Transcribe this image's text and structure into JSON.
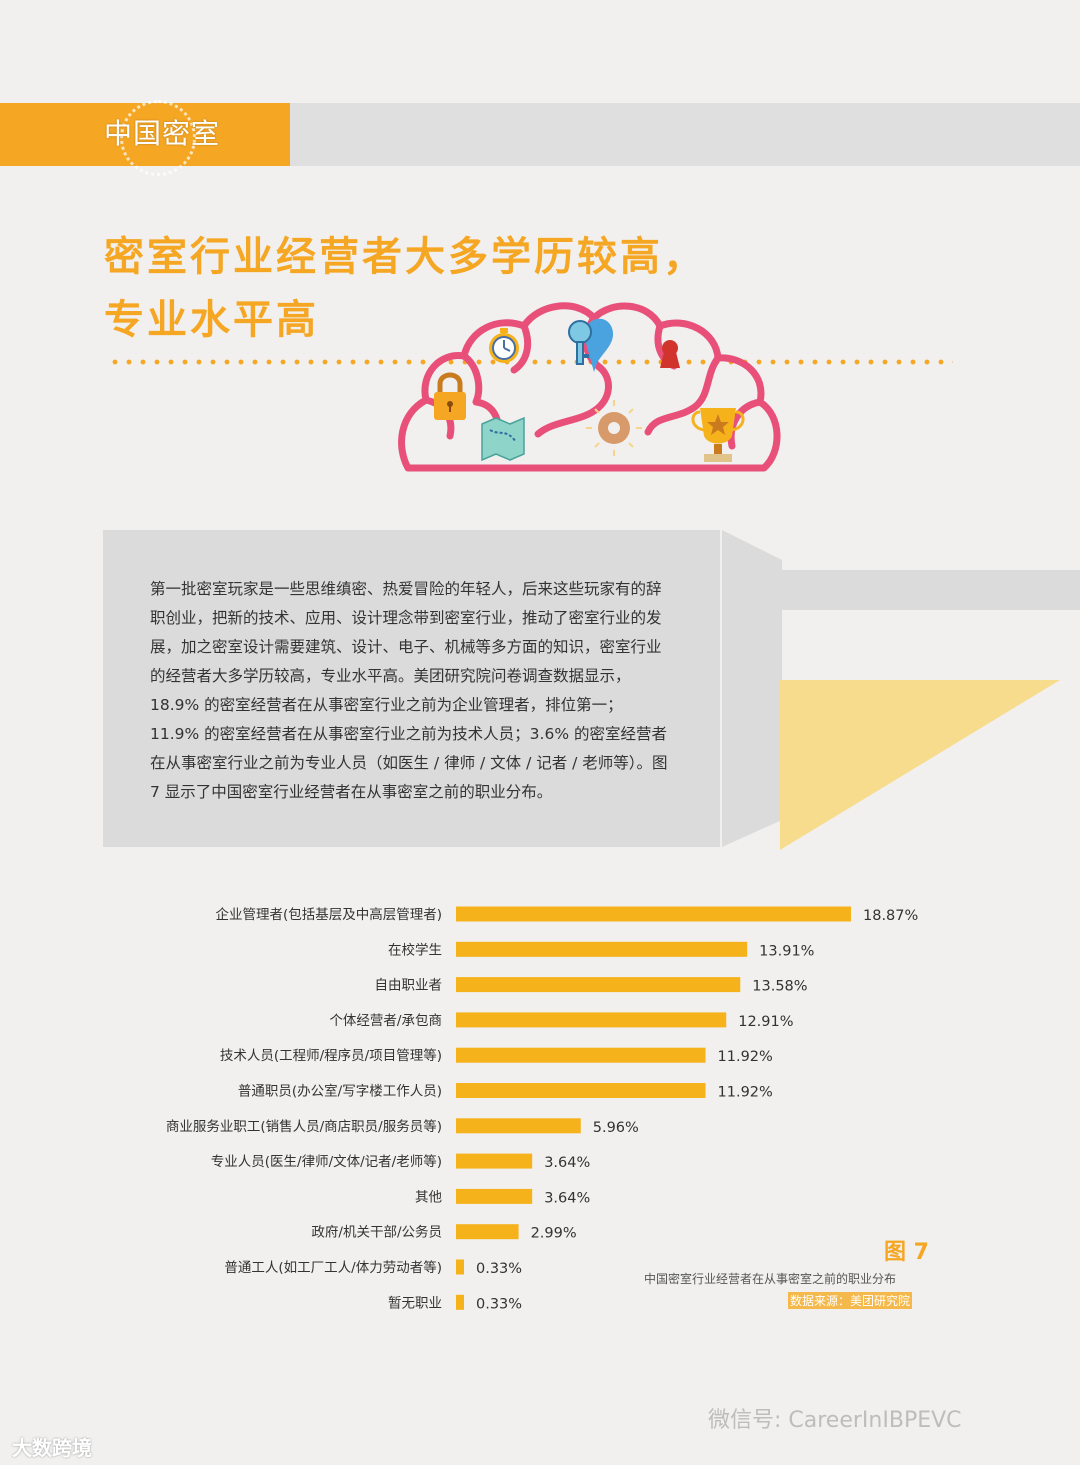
{
  "header": {
    "brand": "中国密室"
  },
  "title": {
    "line1": "密室行业经营者大多学历较高，",
    "line2": "专业水平高"
  },
  "intro": {
    "text": "第一批密室玩家是一些思维缜密、热爱冒险的年轻人，后来这些玩家有的辞职创业，把新的技术、应用、设计理念带到密室行业，推动了密室行业的发展，加之密室设计需要建筑、设计、电子、机械等多方面的知识，密室行业的经营者大多学历较高，专业水平高。美团研究院问卷调查数据显示，18.9% 的密室经营者在从事密室行业之前为企业管理者，排位第一；11.9% 的密室经营者在从事密室行业之前为技术人员；3.6% 的密室经营者在从事密室行业之前为专业人员（如医生 / 律师 / 文体 / 记者 / 老师等）。图 7 显示了中国密室行业经营者在从事密室之前的职业分布。"
  },
  "chart_data": {
    "type": "bar",
    "orientation": "horizontal",
    "categories": [
      "企业管理者(包括基层及中高层管理者)",
      "在校学生",
      "自由职业者",
      "个体经营者/承包商",
      "技术人员(工程师/程序员/项目管理等)",
      "普通职员(办公室/写字楼工作人员)",
      "商业服务业职工(销售人员/商店职员/服务员等)",
      "专业人员(医生/律师/文体/记者/老师等)",
      "其他",
      "政府/机关干部/公务员",
      "普通工人(如工厂工人/体力劳动者等)",
      "暂无职业"
    ],
    "values": [
      18.87,
      13.91,
      13.58,
      12.91,
      11.92,
      11.92,
      5.96,
      3.64,
      3.64,
      2.99,
      0.33,
      0.33
    ],
    "value_labels": [
      "18.87%",
      "13.91%",
      "13.58%",
      "12.91%",
      "11.92%",
      "11.92%",
      "5.96%",
      "3.64%",
      "3.64%",
      "2.99%",
      "0.33%",
      "0.33%"
    ],
    "xlim": [
      0,
      20
    ],
    "bar_color": "#f5b21b",
    "grid": false
  },
  "figure": {
    "label": "图 7",
    "caption": "中国密室行业经营者在从事密室之前的职业分布",
    "source": "数据来源：美团研究院"
  },
  "footer": {
    "wechat": "微信号: CareerInIBPEVC",
    "watermark": "大数跨境"
  },
  "icons": [
    "clock-icon",
    "key-icon",
    "keyhole-icon",
    "padlock-icon",
    "map-icon",
    "donut-icon",
    "trophy-icon"
  ],
  "colors": {
    "accent": "#f5a623",
    "brain": "#e8507a",
    "panel": "#dcdbdb"
  }
}
